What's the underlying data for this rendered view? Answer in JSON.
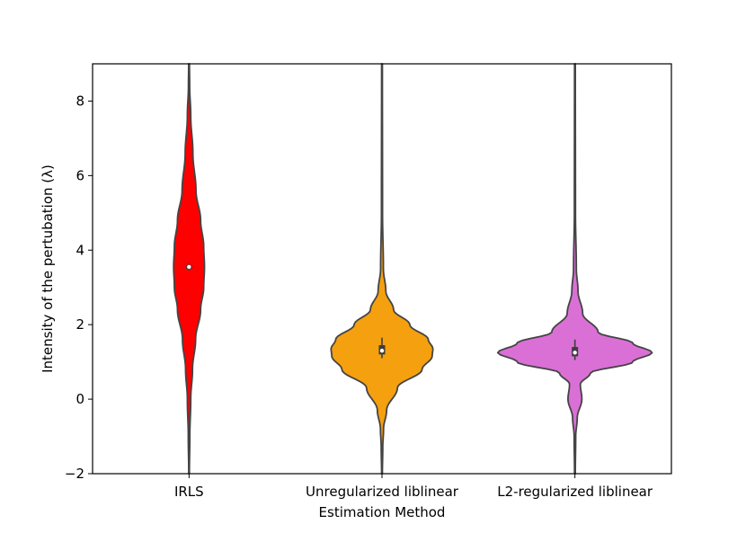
{
  "chart_data": {
    "type": "violin",
    "title": "",
    "xlabel": "Estimation Method",
    "ylabel": "Intensity of the pertubation (λ)",
    "ylim": [
      -2,
      9
    ],
    "yticks": [
      -2,
      0,
      2,
      4,
      6,
      8
    ],
    "grid": false,
    "legend": "none",
    "categories": [
      "IRLS",
      "Unregularized liblinear",
      "L2-regularized liblinear"
    ],
    "series": [
      {
        "category": "IRLS",
        "color": "#ff0000",
        "median": 3.55,
        "q1": 3.5,
        "q3": 3.6,
        "whisker_low": 3.45,
        "whisker_high": 3.65,
        "range": [
          -2,
          9
        ],
        "density": [
          [
            -2.0,
            0.004
          ],
          [
            -1.0,
            0.01
          ],
          [
            0.0,
            0.022
          ],
          [
            0.8,
            0.045
          ],
          [
            1.6,
            0.085
          ],
          [
            2.4,
            0.15
          ],
          [
            3.0,
            0.19
          ],
          [
            3.55,
            0.2
          ],
          [
            4.1,
            0.19
          ],
          [
            4.8,
            0.15
          ],
          [
            5.6,
            0.09
          ],
          [
            6.6,
            0.05
          ],
          [
            7.6,
            0.022
          ],
          [
            8.4,
            0.008
          ],
          [
            9.0,
            0.005
          ]
        ]
      },
      {
        "category": "Unregularized liblinear",
        "color": "#f5a00f",
        "median": 1.3,
        "q1": 1.2,
        "q3": 1.45,
        "whisker_low": 1.1,
        "whisker_high": 1.65,
        "range": [
          -2,
          9
        ],
        "density": [
          [
            -2.0,
            0.005
          ],
          [
            -1.3,
            0.01
          ],
          [
            -0.8,
            0.02
          ],
          [
            -0.3,
            0.06
          ],
          [
            0.3,
            0.2
          ],
          [
            0.8,
            0.52
          ],
          [
            1.15,
            0.65
          ],
          [
            1.35,
            0.66
          ],
          [
            1.6,
            0.6
          ],
          [
            2.0,
            0.36
          ],
          [
            2.4,
            0.15
          ],
          [
            2.9,
            0.05
          ],
          [
            3.5,
            0.018
          ],
          [
            5.0,
            0.007
          ],
          [
            9.0,
            0.005
          ]
        ]
      },
      {
        "category": "L2-regularized liblinear",
        "color": "#da70d6",
        "median": 1.25,
        "q1": 1.15,
        "q3": 1.4,
        "whisker_low": 1.05,
        "whisker_high": 1.6,
        "range": [
          -2,
          9
        ],
        "density": [
          [
            -2.0,
            0.005
          ],
          [
            -1.0,
            0.01
          ],
          [
            -0.5,
            0.03
          ],
          [
            0.0,
            0.09
          ],
          [
            0.4,
            0.07
          ],
          [
            0.7,
            0.2
          ],
          [
            1.0,
            0.75
          ],
          [
            1.25,
            1.0
          ],
          [
            1.5,
            0.75
          ],
          [
            1.8,
            0.3
          ],
          [
            2.3,
            0.1
          ],
          [
            2.9,
            0.04
          ],
          [
            3.5,
            0.018
          ],
          [
            5.0,
            0.007
          ],
          [
            9.0,
            0.005
          ]
        ]
      }
    ]
  }
}
